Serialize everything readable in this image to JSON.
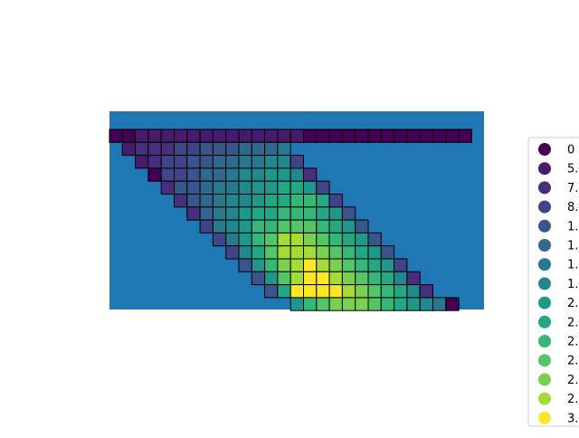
{
  "chart_data": {
    "type": "heatmap",
    "colormap": "viridis",
    "background_color": "#1f77b4",
    "cell_edge_color": "#000000",
    "grid_columns": 28,
    "grid_rows": 14,
    "legend": {
      "placement": "right",
      "entries": [
        {
          "label": "0",
          "color": "#440154"
        },
        {
          "label": "5.",
          "color": "#481a6c"
        },
        {
          "label": "7.",
          "color": "#472f7d"
        },
        {
          "label": "8.",
          "color": "#414487"
        },
        {
          "label": "1.",
          "color": "#39568c"
        },
        {
          "label": "1.",
          "color": "#31688e"
        },
        {
          "label": "1.",
          "color": "#2a788e"
        },
        {
          "label": "1.",
          "color": "#23888e"
        },
        {
          "label": "2.",
          "color": "#1f988b"
        },
        {
          "label": "2.",
          "color": "#22a884"
        },
        {
          "label": "2.",
          "color": "#35b779"
        },
        {
          "label": "2.",
          "color": "#54c568"
        },
        {
          "label": "2.",
          "color": "#7ad151"
        },
        {
          "label": "2.",
          "color": "#a5db36"
        },
        {
          "label": "3.",
          "color": "#fde725"
        }
      ]
    },
    "cells": [
      [
        0,
        0,
        0
      ],
      [
        0,
        1,
        0
      ],
      [
        0,
        2,
        1
      ],
      [
        0,
        3,
        1
      ],
      [
        0,
        4,
        1
      ],
      [
        0,
        5,
        1
      ],
      [
        0,
        6,
        1
      ],
      [
        0,
        7,
        1
      ],
      [
        0,
        8,
        1
      ],
      [
        0,
        9,
        1
      ],
      [
        0,
        10,
        1
      ],
      [
        0,
        11,
        1
      ],
      [
        0,
        12,
        1
      ],
      [
        0,
        13,
        1
      ],
      [
        0,
        14,
        1
      ],
      [
        0,
        15,
        0
      ],
      [
        0,
        16,
        0
      ],
      [
        0,
        17,
        0
      ],
      [
        0,
        18,
        0
      ],
      [
        0,
        19,
        0
      ],
      [
        0,
        20,
        0
      ],
      [
        0,
        21,
        0
      ],
      [
        0,
        22,
        0
      ],
      [
        0,
        23,
        0
      ],
      [
        0,
        24,
        0
      ],
      [
        0,
        25,
        0
      ],
      [
        0,
        26,
        0
      ],
      [
        0,
        27,
        0
      ],
      [
        1,
        1,
        1
      ],
      [
        1,
        2,
        2
      ],
      [
        1,
        3,
        2
      ],
      [
        1,
        4,
        2
      ],
      [
        1,
        5,
        3
      ],
      [
        1,
        6,
        3
      ],
      [
        1,
        7,
        4
      ],
      [
        1,
        8,
        4
      ],
      [
        1,
        9,
        4
      ],
      [
        1,
        10,
        5
      ],
      [
        1,
        11,
        5
      ],
      [
        1,
        12,
        5
      ],
      [
        1,
        13,
        6
      ],
      [
        2,
        2,
        1
      ],
      [
        2,
        3,
        2
      ],
      [
        2,
        4,
        3
      ],
      [
        2,
        5,
        3
      ],
      [
        2,
        6,
        4
      ],
      [
        2,
        7,
        4
      ],
      [
        2,
        8,
        5
      ],
      [
        2,
        9,
        5
      ],
      [
        2,
        10,
        6
      ],
      [
        2,
        11,
        6
      ],
      [
        2,
        12,
        7
      ],
      [
        2,
        13,
        7
      ],
      [
        2,
        14,
        3
      ],
      [
        3,
        3,
        0
      ],
      [
        3,
        4,
        3
      ],
      [
        3,
        5,
        3
      ],
      [
        3,
        6,
        4
      ],
      [
        3,
        7,
        5
      ],
      [
        3,
        8,
        5
      ],
      [
        3,
        9,
        6
      ],
      [
        3,
        10,
        7
      ],
      [
        3,
        11,
        7
      ],
      [
        3,
        12,
        8
      ],
      [
        3,
        13,
        8
      ],
      [
        3,
        14,
        7
      ],
      [
        3,
        15,
        2
      ],
      [
        4,
        4,
        2
      ],
      [
        4,
        5,
        4
      ],
      [
        4,
        6,
        4
      ],
      [
        4,
        7,
        5
      ],
      [
        4,
        8,
        6
      ],
      [
        4,
        9,
        6
      ],
      [
        4,
        10,
        7
      ],
      [
        4,
        11,
        8
      ],
      [
        4,
        12,
        8
      ],
      [
        4,
        13,
        9
      ],
      [
        4,
        14,
        9
      ],
      [
        4,
        15,
        8
      ],
      [
        4,
        16,
        3
      ],
      [
        5,
        5,
        2
      ],
      [
        5,
        6,
        4
      ],
      [
        5,
        7,
        5
      ],
      [
        5,
        8,
        6
      ],
      [
        5,
        9,
        7
      ],
      [
        5,
        10,
        7
      ],
      [
        5,
        11,
        8
      ],
      [
        5,
        12,
        9
      ],
      [
        5,
        13,
        9
      ],
      [
        5,
        14,
        10
      ],
      [
        5,
        15,
        10
      ],
      [
        5,
        16,
        9
      ],
      [
        5,
        17,
        3
      ],
      [
        6,
        6,
        2
      ],
      [
        6,
        7,
        5
      ],
      [
        6,
        8,
        6
      ],
      [
        6,
        9,
        7
      ],
      [
        6,
        10,
        8
      ],
      [
        6,
        11,
        9
      ],
      [
        6,
        12,
        9
      ],
      [
        6,
        13,
        10
      ],
      [
        6,
        14,
        10
      ],
      [
        6,
        15,
        10
      ],
      [
        6,
        16,
        9
      ],
      [
        6,
        17,
        8
      ],
      [
        6,
        18,
        4
      ],
      [
        7,
        7,
        3
      ],
      [
        7,
        8,
        6
      ],
      [
        7,
        9,
        7
      ],
      [
        7,
        10,
        8
      ],
      [
        7,
        11,
        10
      ],
      [
        7,
        12,
        10
      ],
      [
        7,
        13,
        11
      ],
      [
        7,
        14,
        11
      ],
      [
        7,
        15,
        11
      ],
      [
        7,
        16,
        10
      ],
      [
        7,
        17,
        9
      ],
      [
        7,
        18,
        8
      ],
      [
        7,
        19,
        4
      ],
      [
        8,
        8,
        3
      ],
      [
        8,
        9,
        6
      ],
      [
        8,
        10,
        8
      ],
      [
        8,
        11,
        10
      ],
      [
        8,
        12,
        11
      ],
      [
        8,
        13,
        13
      ],
      [
        8,
        14,
        13
      ],
      [
        8,
        15,
        12
      ],
      [
        8,
        16,
        11
      ],
      [
        8,
        17,
        10
      ],
      [
        8,
        18,
        9
      ],
      [
        8,
        19,
        8
      ],
      [
        8,
        20,
        4
      ],
      [
        9,
        9,
        3
      ],
      [
        9,
        10,
        7
      ],
      [
        9,
        11,
        9
      ],
      [
        9,
        12,
        11
      ],
      [
        9,
        13,
        13
      ],
      [
        9,
        14,
        13
      ],
      [
        9,
        15,
        13
      ],
      [
        9,
        16,
        12
      ],
      [
        9,
        17,
        11
      ],
      [
        9,
        18,
        10
      ],
      [
        9,
        19,
        9
      ],
      [
        9,
        20,
        8
      ],
      [
        9,
        21,
        4
      ],
      [
        10,
        10,
        4
      ],
      [
        10,
        11,
        8
      ],
      [
        10,
        12,
        10
      ],
      [
        10,
        13,
        12
      ],
      [
        10,
        14,
        13
      ],
      [
        10,
        15,
        14
      ],
      [
        10,
        16,
        13
      ],
      [
        10,
        17,
        12
      ],
      [
        10,
        18,
        11
      ],
      [
        10,
        19,
        10
      ],
      [
        10,
        20,
        9
      ],
      [
        10,
        21,
        8
      ],
      [
        10,
        22,
        3
      ],
      [
        11,
        11,
        4
      ],
      [
        11,
        12,
        8
      ],
      [
        11,
        13,
        11
      ],
      [
        11,
        14,
        13
      ],
      [
        11,
        15,
        14
      ],
      [
        11,
        16,
        14
      ],
      [
        11,
        17,
        13
      ],
      [
        11,
        18,
        12
      ],
      [
        11,
        19,
        11
      ],
      [
        11,
        20,
        10
      ],
      [
        11,
        21,
        9
      ],
      [
        11,
        22,
        7
      ],
      [
        11,
        23,
        2
      ],
      [
        12,
        12,
        4
      ],
      [
        12,
        13,
        9
      ],
      [
        12,
        14,
        14
      ],
      [
        12,
        15,
        14
      ],
      [
        12,
        16,
        14
      ],
      [
        12,
        17,
        14
      ],
      [
        12,
        18,
        13
      ],
      [
        12,
        19,
        12
      ],
      [
        12,
        20,
        11
      ],
      [
        12,
        21,
        10
      ],
      [
        12,
        22,
        9
      ],
      [
        12,
        23,
        7
      ],
      [
        12,
        24,
        2
      ],
      [
        13,
        14,
        8
      ],
      [
        13,
        15,
        10
      ],
      [
        13,
        16,
        11
      ],
      [
        13,
        17,
        12
      ],
      [
        13,
        18,
        12
      ],
      [
        13,
        19,
        12
      ],
      [
        13,
        20,
        11
      ],
      [
        13,
        21,
        10
      ],
      [
        13,
        22,
        9
      ],
      [
        13,
        23,
        8
      ],
      [
        13,
        24,
        7
      ],
      [
        13,
        25,
        6
      ],
      [
        13,
        26,
        0
      ]
    ]
  }
}
